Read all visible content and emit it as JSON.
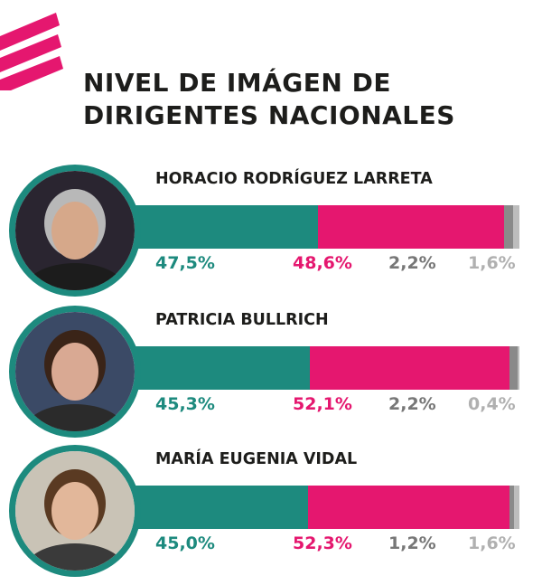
{
  "title_lines": [
    "NIVEL DE IMÁGEN DE",
    "DIRIGENTES NACIONALES"
  ],
  "colors": {
    "positive": "#1d8a7e",
    "negative": "#e5176f",
    "dont_know": "#8a8a8a",
    "no_answer": "#bdbdbd",
    "accent": "#e5176f"
  },
  "chart_data": {
    "type": "bar",
    "orientation": "horizontal",
    "stacked": true,
    "title": "NIVEL DE IMÁGEN DE DIRIGENTES NACIONALES",
    "categories": [
      "HORACIO RODRÍGUEZ LARRETA",
      "PATRICIA BULLRICH",
      "MARÍA EUGENIA VIDAL"
    ],
    "labels": [
      [
        "47,5%",
        "48,6%",
        "2,2%",
        "1,6%"
      ],
      [
        "45,3%",
        "52,1%",
        "2,2%",
        "0,4%"
      ],
      [
        "45,0%",
        "52,3%",
        "1,2%",
        "1,6%"
      ]
    ],
    "series": [
      {
        "values": [
          47.5,
          45.3,
          45.0
        ],
        "color": "#1d8a7e"
      },
      {
        "values": [
          48.6,
          52.1,
          52.3
        ],
        "color": "#e5176f"
      },
      {
        "values": [
          2.2,
          2.2,
          1.2
        ],
        "color": "#8a8a8a"
      },
      {
        "values": [
          1.6,
          0.4,
          1.6
        ],
        "color": "#bdbdbd"
      }
    ],
    "xlim": [
      0,
      100
    ],
    "legend": "none",
    "grid": false
  }
}
